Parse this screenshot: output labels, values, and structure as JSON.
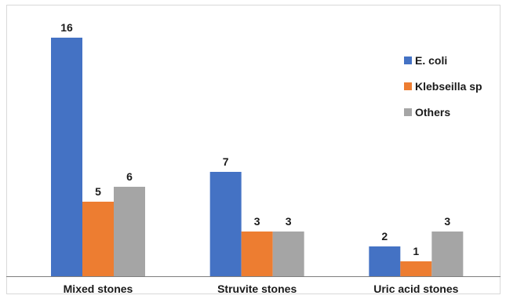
{
  "chart_data": {
    "type": "bar",
    "title": "",
    "xlabel": "",
    "ylabel": "",
    "ylim": [
      0,
      17
    ],
    "grid": false,
    "legend_position": "right",
    "categories": [
      "Mixed stones",
      "Struvite stones",
      "Uric acid stones"
    ],
    "series": [
      {
        "name": "E. coli",
        "values": [
          16,
          7,
          2
        ],
        "color": "#4472c4"
      },
      {
        "name": "Klebseilla sp",
        "values": [
          5,
          3,
          1
        ],
        "color": "#ed7d31"
      },
      {
        "name": "Others",
        "values": [
          6,
          3,
          3
        ],
        "color": "#a5a5a5"
      }
    ]
  }
}
